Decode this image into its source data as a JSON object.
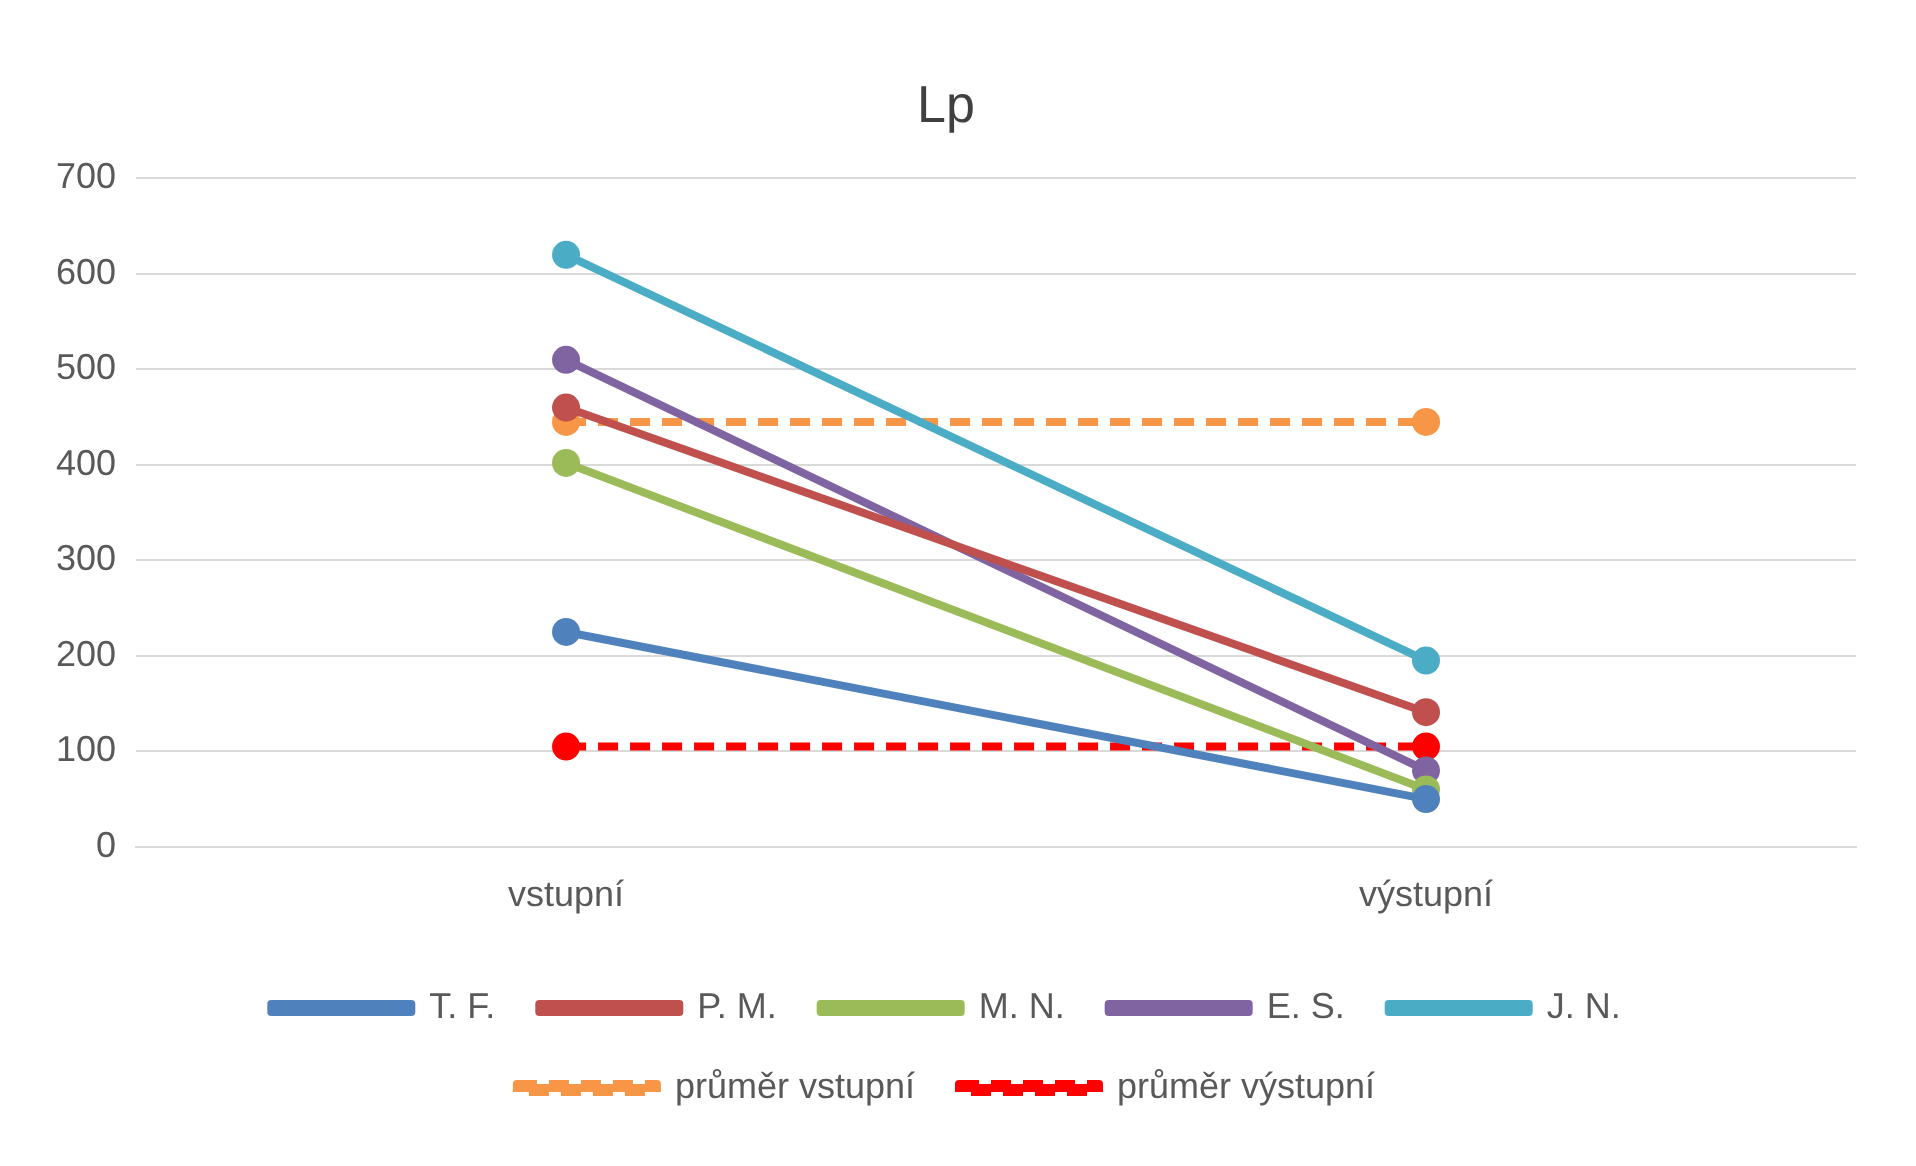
{
  "chart_data": {
    "type": "line",
    "title": "Lp",
    "categories": [
      "vstupní",
      "výstupní"
    ],
    "series": [
      {
        "name": "T. F.",
        "color": "#4f81bd",
        "values": [
          225,
          50
        ]
      },
      {
        "name": "P. M.",
        "color": "#c0504d",
        "values": [
          460,
          141
        ]
      },
      {
        "name": "M. N.",
        "color": "#9bbb59",
        "values": [
          402,
          60
        ]
      },
      {
        "name": "E. S.",
        "color": "#8064a2",
        "values": [
          510,
          80
        ]
      },
      {
        "name": "J. N.",
        "color": "#4bacc6",
        "values": [
          620,
          195
        ]
      },
      {
        "name": "průměr vstupní",
        "color": "#f79646",
        "values": [
          445,
          445
        ],
        "line_style": "dashed"
      },
      {
        "name": "průměr výstupní",
        "color": "#ff0000",
        "values": [
          105,
          105
        ],
        "line_style": "dashed"
      }
    ],
    "ylim": [
      0,
      700
    ],
    "yticks": [
      0,
      100,
      200,
      300,
      400,
      500,
      600,
      700
    ],
    "grid": "y",
    "legend": "bottom",
    "marker": "circle",
    "line_style": "solid"
  }
}
